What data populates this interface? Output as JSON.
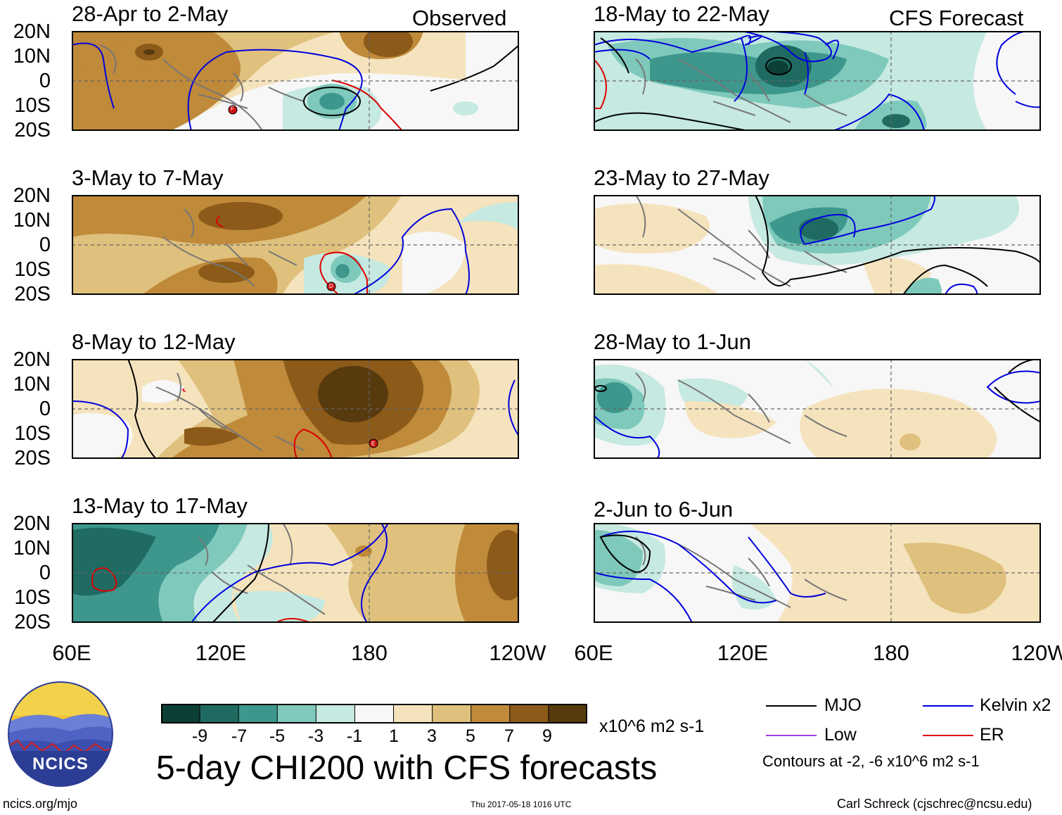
{
  "header": {
    "observed_label": "Observed",
    "forecast_label": "CFS Forecast"
  },
  "lat_labels": [
    "20N",
    "10N",
    "0",
    "10S",
    "20S"
  ],
  "lon_labels": [
    "60E",
    "120E",
    "180",
    "120W"
  ],
  "observed_panels": [
    {
      "title": "28-Apr to 2-May",
      "storm_letter": "F"
    },
    {
      "title": "3-May to 7-May",
      "storm_letter": "D"
    },
    {
      "title": "8-May to 12-May",
      "storm_letter": "E"
    },
    {
      "title": "13-May to 17-May",
      "storm_letter": ""
    }
  ],
  "forecast_panels": [
    {
      "title": "18-May to 22-May"
    },
    {
      "title": "23-May to 27-May"
    },
    {
      "title": "28-May to 1-Jun"
    },
    {
      "title": "2-Jun to 6-Jun"
    }
  ],
  "colorbar": {
    "labels": [
      "-9",
      "-7",
      "-5",
      "-3",
      "-1",
      "1",
      "3",
      "5",
      "7",
      "9"
    ],
    "colors": [
      "#0c3f35",
      "#1f6b62",
      "#3d978c",
      "#7ec9bb",
      "#c6e9e1",
      "#f7f7f7",
      "#f5e3bd",
      "#dfc07c",
      "#bf8a3a",
      "#8c5a19",
      "#573a0e"
    ],
    "units": "x10^6 m2 s-1"
  },
  "legend": {
    "items": [
      {
        "label": "MJO",
        "color": "#000000"
      },
      {
        "label": "Kelvin x2",
        "color": "#0000dd"
      },
      {
        "label": "Low",
        "color": "#a040e0"
      },
      {
        "label": "ER",
        "color": "#dd0000"
      }
    ],
    "contours_note": "Contours at -2, -6 x10^6 m2 s-1"
  },
  "main_title": "5-day CHI200 with CFS forecasts",
  "logo_text": "NCICS",
  "footer": {
    "url": "ncics.org/mjo",
    "timestamp": "Thu 2017-05-18 1016 UTC",
    "author": "Carl Schreck (cjschrec@ncsu.edu)"
  }
}
